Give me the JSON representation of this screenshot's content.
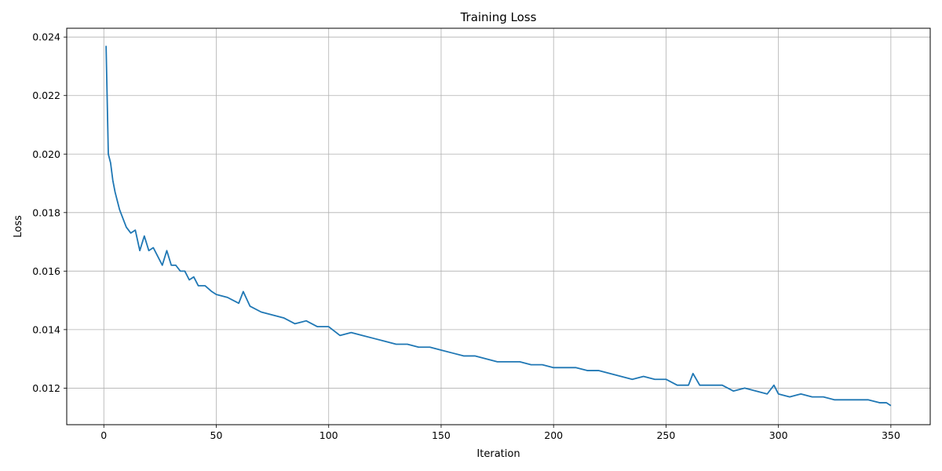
{
  "chart_data": {
    "type": "line",
    "title": "Training Loss",
    "xlabel": "Iteration",
    "ylabel": "Loss",
    "xlim": [
      -16.5,
      367.5
    ],
    "ylim": [
      0.01075,
      0.0243
    ],
    "xticks": [
      0,
      50,
      100,
      150,
      200,
      250,
      300,
      350
    ],
    "yticks": [
      0.012,
      0.014,
      0.016,
      0.018,
      0.02,
      0.022,
      0.024
    ],
    "ytick_labels": [
      "0.012",
      "0.014",
      "0.016",
      "0.018",
      "0.020",
      "0.022",
      "0.024"
    ],
    "grid": true,
    "series": [
      {
        "color": "#1f77b4",
        "x": [
          1,
          2,
          3,
          4,
          5,
          6,
          7,
          8,
          10,
          12,
          14,
          16,
          18,
          20,
          22,
          24,
          26,
          28,
          30,
          32,
          34,
          36,
          38,
          40,
          42,
          45,
          48,
          50,
          55,
          60,
          62,
          65,
          70,
          75,
          80,
          85,
          90,
          95,
          100,
          105,
          110,
          115,
          120,
          125,
          130,
          135,
          140,
          145,
          150,
          155,
          160,
          165,
          170,
          175,
          180,
          185,
          190,
          195,
          200,
          205,
          210,
          215,
          220,
          225,
          230,
          235,
          240,
          245,
          250,
          255,
          260,
          262,
          265,
          270,
          275,
          280,
          285,
          290,
          295,
          298,
          300,
          305,
          310,
          315,
          320,
          325,
          330,
          335,
          340,
          345,
          348,
          350
        ],
        "y": [
          0.0237,
          0.02,
          0.0197,
          0.0191,
          0.0187,
          0.0184,
          0.0181,
          0.0179,
          0.0175,
          0.0173,
          0.0174,
          0.0167,
          0.0172,
          0.0167,
          0.0168,
          0.0165,
          0.0162,
          0.0167,
          0.0162,
          0.0162,
          0.016,
          0.016,
          0.0157,
          0.0158,
          0.0155,
          0.0155,
          0.0153,
          0.0152,
          0.0151,
          0.0149,
          0.0153,
          0.0148,
          0.0146,
          0.0145,
          0.0144,
          0.0142,
          0.0143,
          0.0141,
          0.0141,
          0.0138,
          0.0139,
          0.0138,
          0.0137,
          0.0136,
          0.0135,
          0.0135,
          0.0134,
          0.0134,
          0.0133,
          0.0132,
          0.0131,
          0.0131,
          0.013,
          0.0129,
          0.0129,
          0.0129,
          0.0128,
          0.0128,
          0.0127,
          0.0127,
          0.0127,
          0.0126,
          0.0126,
          0.0125,
          0.0124,
          0.0123,
          0.0124,
          0.0123,
          0.0123,
          0.0121,
          0.0121,
          0.0125,
          0.0121,
          0.0121,
          0.0121,
          0.0119,
          0.012,
          0.0119,
          0.0118,
          0.0121,
          0.0118,
          0.0117,
          0.0118,
          0.0117,
          0.0117,
          0.0116,
          0.0116,
          0.0116,
          0.0116,
          0.0115,
          0.0115,
          0.0114
        ]
      }
    ]
  }
}
